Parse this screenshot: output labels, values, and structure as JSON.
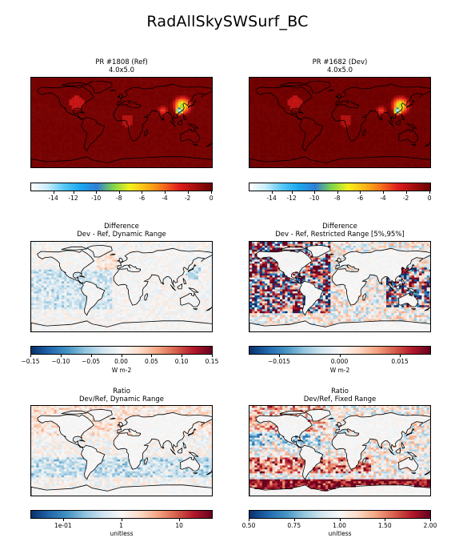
{
  "title": "RadAllSkySWSurf_BC",
  "colors": {
    "wbgyr": [
      "#ffffff",
      "#c6ecfb",
      "#56c8f6",
      "#1aa7ee",
      "#2f7fd4",
      "#7fd44a",
      "#f4f01c",
      "#fbb716",
      "#f5711b",
      "#e01d1d",
      "#a30d0d",
      "#6a0000"
    ],
    "rdbu": [
      "#08306b",
      "#2166ac",
      "#4393c3",
      "#92c5de",
      "#d1e5f0",
      "#f7f7f7",
      "#fddbc7",
      "#f4a582",
      "#d6604d",
      "#b2182b",
      "#67001f"
    ]
  },
  "panels": [
    {
      "id": "ref",
      "title1": "PR #1808 (Ref)",
      "title2": "4.0x5.0",
      "unit": "",
      "cmap": "wbgyr",
      "ticks": [
        {
          "v": -14,
          "p": 0.126
        },
        {
          "v": -12,
          "p": 0.236
        },
        {
          "v": -10,
          "p": 0.362
        },
        {
          "v": -8,
          "p": 0.488
        },
        {
          "v": -6,
          "p": 0.614
        },
        {
          "v": -4,
          "p": 0.74
        },
        {
          "v": -2,
          "p": 0.866
        },
        {
          "v": 0,
          "p": 0.996
        }
      ]
    },
    {
      "id": "dev",
      "title1": "PR #1682 (Dev)",
      "title2": "4.0x5.0",
      "unit": "",
      "cmap": "wbgyr",
      "ticks": [
        {
          "v": -14,
          "p": 0.126
        },
        {
          "v": -12,
          "p": 0.236
        },
        {
          "v": -10,
          "p": 0.362
        },
        {
          "v": -8,
          "p": 0.488
        },
        {
          "v": -6,
          "p": 0.614
        },
        {
          "v": -4,
          "p": 0.74
        },
        {
          "v": -2,
          "p": 0.866
        },
        {
          "v": 0,
          "p": 0.996
        }
      ]
    },
    {
      "id": "diff-dyn",
      "title1": "Difference",
      "title2": "Dev - Ref, Dynamic Range",
      "unit": "W m-2",
      "cmap": "rdbu",
      "ticks": [
        {
          "v": "−0.15",
          "p": 0.0
        },
        {
          "v": "−0.10",
          "p": 0.167
        },
        {
          "v": "−0.05",
          "p": 0.333
        },
        {
          "v": "0.00",
          "p": 0.5
        },
        {
          "v": "0.05",
          "p": 0.667
        },
        {
          "v": "0.10",
          "p": 0.833
        },
        {
          "v": "0.15",
          "p": 1.0
        }
      ]
    },
    {
      "id": "diff-res",
      "title1": "Difference",
      "title2": "Dev - Ref, Restricted Range [5%,95%]",
      "unit": "W m-2",
      "cmap": "rdbu",
      "ticks": [
        {
          "v": "−0.015",
          "p": 0.167
        },
        {
          "v": "0.000",
          "p": 0.5
        },
        {
          "v": "0.015",
          "p": 0.833
        }
      ]
    },
    {
      "id": "ratio-dyn",
      "title1": "Ratio",
      "title2": "Dev/Ref, Dynamic Range",
      "unit": "unitless",
      "cmap": "rdbu",
      "ticks": [
        {
          "v": "1e-01",
          "p": 0.18
        },
        {
          "v": "1",
          "p": 0.5
        },
        {
          "v": "10",
          "p": 0.82
        }
      ]
    },
    {
      "id": "ratio-fix",
      "title1": "Ratio",
      "title2": "Dev/Ref, Fixed Range",
      "unit": "unitless",
      "cmap": "rdbu",
      "ticks": [
        {
          "v": "0.50",
          "p": 0.0
        },
        {
          "v": "0.75",
          "p": 0.25
        },
        {
          "v": "1.00",
          "p": 0.5
        },
        {
          "v": "1.50",
          "p": 0.75
        },
        {
          "v": "2.00",
          "p": 1.0
        }
      ]
    }
  ],
  "unit_first_row": "W m-2",
  "chart_data": {
    "type": "heatmap",
    "title": "RadAllSkySWSurf_BC",
    "variable": "RadAllSkySWSurf_BC",
    "grid": "4.0x5.0",
    "ranges": {
      "ref": [
        -15.5,
        0
      ],
      "dev": [
        -15.5,
        0
      ],
      "diff_dynamic": [
        -0.15,
        0.15
      ],
      "diff_restricted": [
        -0.02,
        0.02
      ],
      "ratio_dynamic": [
        0.03,
        30
      ],
      "ratio_fixed": [
        0.5,
        2.0
      ]
    }
  }
}
